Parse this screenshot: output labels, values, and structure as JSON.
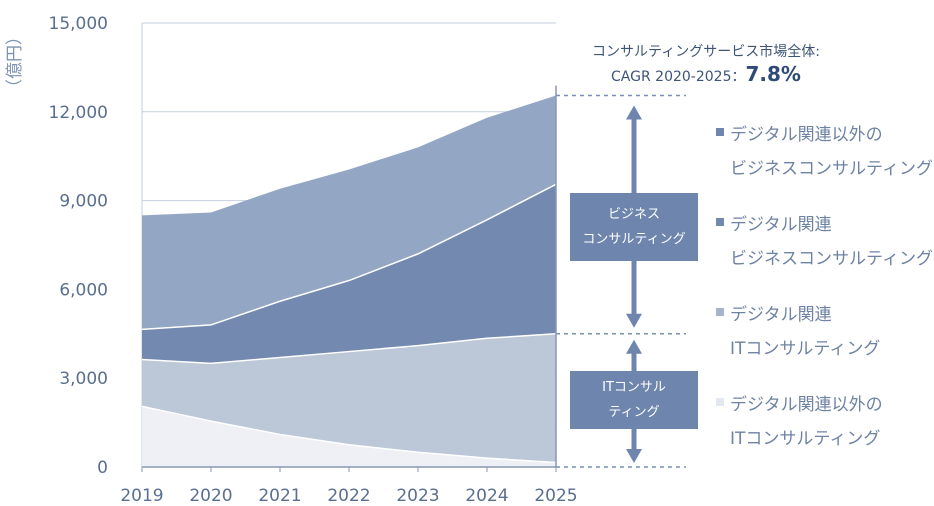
{
  "chart_data": {
    "type": "area",
    "stacked": true,
    "x": [
      2019,
      2020,
      2021,
      2022,
      2023,
      2024,
      2025
    ],
    "ylabel": "（億円）",
    "ylim": [
      0,
      15000
    ],
    "yticks": [
      "0",
      "3,000",
      "6,000",
      "9,000",
      "12,000",
      "15,000"
    ],
    "grid": true,
    "legend_position": "right",
    "series": [
      {
        "name": "デジタル関連以外のITコンサルティング",
        "color": "#eef0f5",
        "values": [
          2050,
          1550,
          1100,
          750,
          500,
          300,
          150
        ]
      },
      {
        "name": "デジタル関連ITコンサルティング",
        "color": "#bcc7d8",
        "values": [
          1580,
          1950,
          2600,
          3150,
          3600,
          4050,
          4350
        ]
      },
      {
        "name": "デジタル関連ビジネスコンサルティング",
        "color": "#7389af",
        "values": [
          1020,
          1300,
          1900,
          2400,
          3100,
          4000,
          5050
        ]
      },
      {
        "name": "デジタル関連以外のビジネスコンサルティング",
        "color": "#93a6c4",
        "values": [
          3850,
          3800,
          3800,
          3750,
          3600,
          3450,
          3000
        ]
      }
    ]
  },
  "annotations": {
    "cagr_title": "コンサルティングサービス市場全体:",
    "cagr_label": "CAGR 2020-2025：",
    "cagr_value": "7.8%",
    "business_box": [
      "ビジネス",
      "コンサルティング"
    ],
    "it_box": [
      "ITコンサル",
      "ティング"
    ]
  },
  "legend": [
    {
      "line1": "デジタル関連以外の",
      "line2": "ビジネスコンサルティング",
      "color": "#6e85ad"
    },
    {
      "line1": "デジタル関連",
      "line2": "ビジネスコンサルティング",
      "color": "#7389af"
    },
    {
      "line1": "デジタル関連",
      "line2": "ITコンサルティング",
      "color": "#a7b5cc"
    },
    {
      "line1": "デジタル関連以外の",
      "line2": "ITコンサルティング",
      "color": "#e3e7ef"
    }
  ]
}
